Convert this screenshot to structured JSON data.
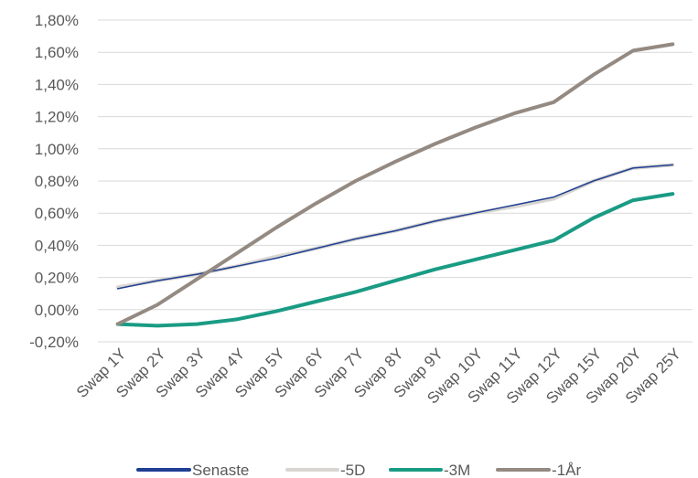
{
  "chart_data": {
    "type": "line",
    "title": "",
    "xlabel": "",
    "ylabel": "",
    "categories": [
      "Swap 1Y",
      "Swap 2Y",
      "Swap 3Y",
      "Swap 4Y",
      "Swap 5Y",
      "Swap 6Y",
      "Swap 7Y",
      "Swap 8Y",
      "Swap 9Y",
      "Swap 10Y",
      "Swap 11Y",
      "Swap 12Y",
      "Swap 15Y",
      "Swap 20Y",
      "Swap 25Y"
    ],
    "ylim": [
      -0.2,
      1.8
    ],
    "yticks": [
      "1,80%",
      "1,60%",
      "1,40%",
      "1,20%",
      "1,00%",
      "0,80%",
      "0,60%",
      "0,40%",
      "0,20%",
      "0,00%",
      "-0,20%"
    ],
    "ytick_values": [
      1.8,
      1.6,
      1.4,
      1.2,
      1.0,
      0.8,
      0.6,
      0.4,
      0.2,
      0.0,
      -0.2
    ],
    "grid": true,
    "legend_position": "bottom",
    "series": [
      {
        "name": "Senaste",
        "color": "#1f3f94",
        "values": [
          0.13,
          0.18,
          0.22,
          0.27,
          0.32,
          0.38,
          0.44,
          0.49,
          0.55,
          0.6,
          0.65,
          0.7,
          0.8,
          0.88,
          0.9
        ]
      },
      {
        "name": "-5D",
        "color": "#d9d6d1",
        "values": [
          0.14,
          0.18,
          0.22,
          0.27,
          0.33,
          0.38,
          0.44,
          0.49,
          0.55,
          0.6,
          0.64,
          0.69,
          0.8,
          0.88,
          0.9
        ]
      },
      {
        "name": "-3M",
        "color": "#1a9b84",
        "values": [
          -0.09,
          -0.1,
          -0.09,
          -0.06,
          -0.01,
          0.05,
          0.11,
          0.18,
          0.25,
          0.31,
          0.37,
          0.43,
          0.57,
          0.68,
          0.72
        ]
      },
      {
        "name": "-1År",
        "color": "#948a82",
        "values": [
          -0.09,
          0.03,
          0.19,
          0.35,
          0.51,
          0.66,
          0.8,
          0.92,
          1.03,
          1.13,
          1.22,
          1.29,
          1.46,
          1.61,
          1.65
        ]
      }
    ]
  }
}
